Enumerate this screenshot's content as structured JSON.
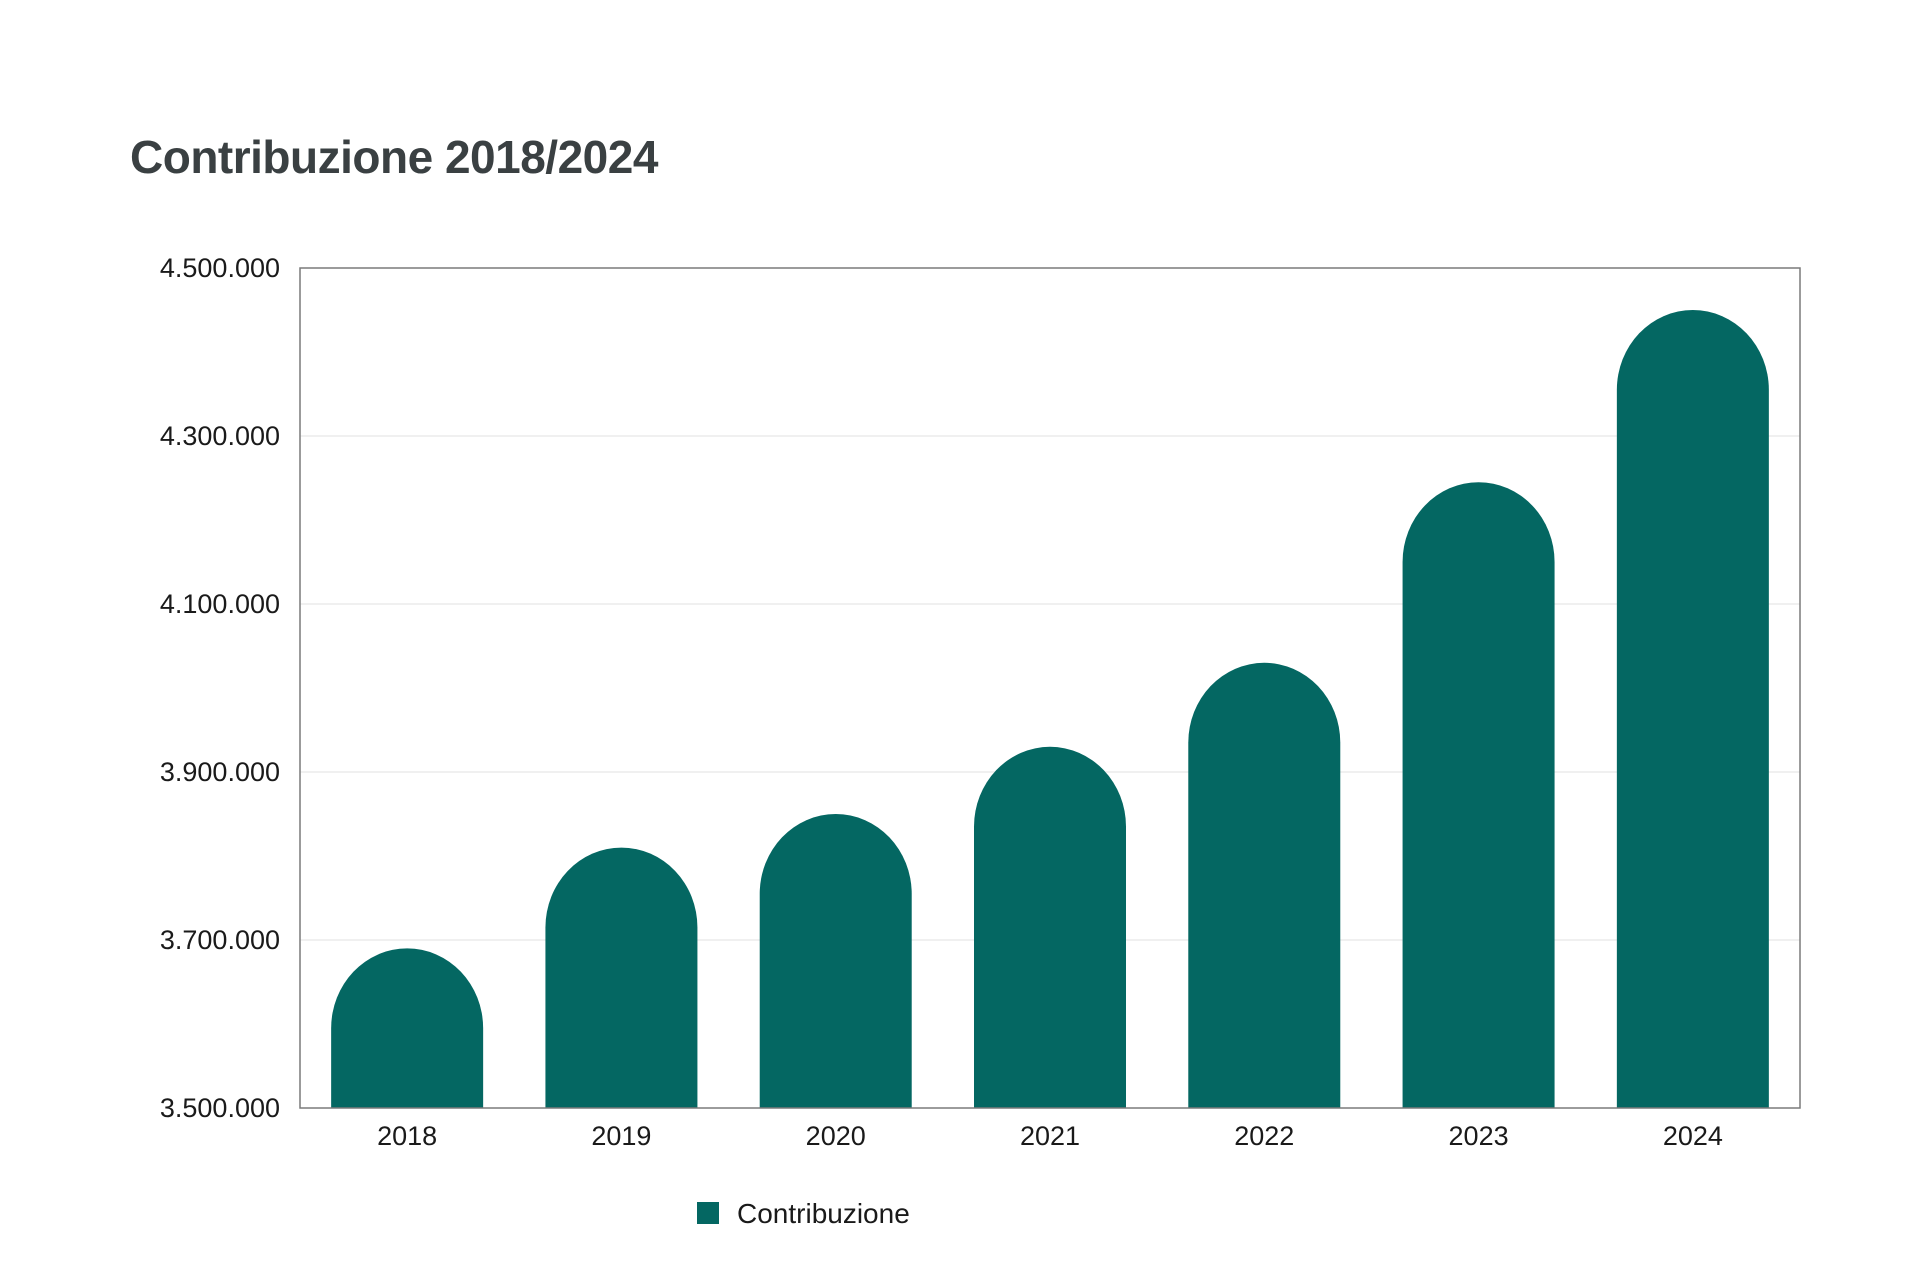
{
  "chart_data": {
    "type": "bar",
    "title": "Contribuzione 2018/2024",
    "categories": [
      "2018",
      "2019",
      "2020",
      "2021",
      "2022",
      "2023",
      "2024"
    ],
    "series": [
      {
        "name": "Contribuzione",
        "values": [
          3690000,
          3810000,
          3850000,
          3930000,
          4030000,
          4245000,
          4450000
        ],
        "color": "#046762"
      }
    ],
    "ylim": [
      3500000,
      4500000
    ],
    "yticks": [
      3500000,
      3700000,
      3900000,
      4100000,
      4300000,
      4500000
    ],
    "ytick_labels": [
      "3.500.000",
      "3.700.000",
      "3.900.000",
      "4.100.000",
      "4.300.000",
      "4.500.000"
    ],
    "grid": true,
    "grid_color": "#ececec",
    "frame_color": "#7a7a7a",
    "legend_position": "bottom",
    "xlabel": "",
    "ylabel": ""
  }
}
